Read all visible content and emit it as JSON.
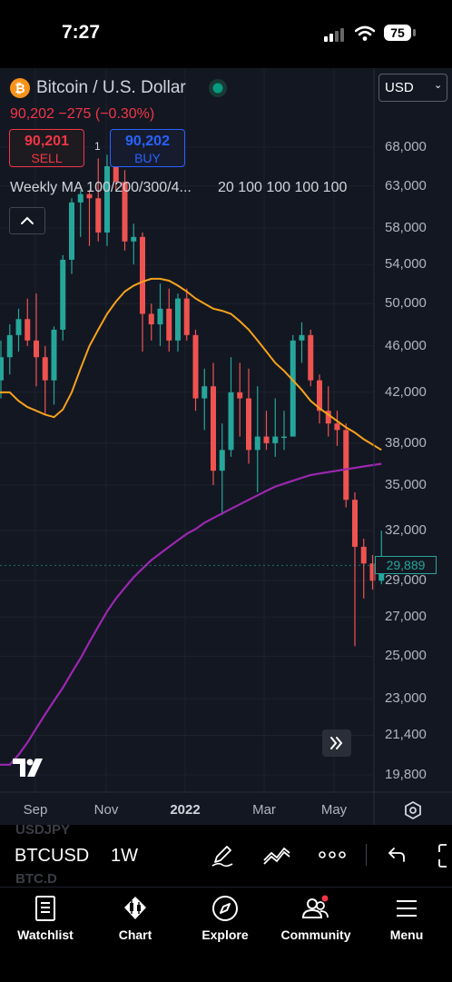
{
  "status_bar": {
    "time": "7:27",
    "battery": "75"
  },
  "header": {
    "title": "Bitcoin / U.S. Dollar",
    "quote": "90,202  −275 (−0.30%)",
    "quote_color": "#f23645",
    "sell_price": "90,201",
    "sell_label": "SELL",
    "spread": "1",
    "buy_price": "90,202",
    "buy_label": "BUY",
    "indicator_label": "Weekly MA 100/200/300/4...",
    "indicator_values": "20 100 100 100 100",
    "currency": "USD",
    "market_status_color": "#089981"
  },
  "chart_data": {
    "type": "candlestick",
    "y_ticks": [
      "68,000",
      "63,000",
      "58,000",
      "54,000",
      "50,000",
      "46,000",
      "42,000",
      "38,000",
      "35,000",
      "32,000",
      "29,000",
      "27,000",
      "25,000",
      "23,000",
      "21,400",
      "19,800"
    ],
    "x_ticks": [
      "Sep",
      "Nov",
      "2022",
      "Mar",
      "May"
    ],
    "last_price": "29,889",
    "up_color": "#26a69a",
    "down_color": "#ef5350",
    "candles": [
      {
        "o": 43000,
        "h": 46500,
        "l": 41500,
        "c": 45000
      },
      {
        "o": 45000,
        "h": 48000,
        "l": 43500,
        "c": 47000
      },
      {
        "o": 47000,
        "h": 49500,
        "l": 45500,
        "c": 48500
      },
      {
        "o": 48500,
        "h": 50500,
        "l": 46000,
        "c": 46500
      },
      {
        "o": 46500,
        "h": 51000,
        "l": 42500,
        "c": 45000
      },
      {
        "o": 45000,
        "h": 46000,
        "l": 40200,
        "c": 43000
      },
      {
        "o": 43000,
        "h": 47800,
        "l": 41000,
        "c": 47500
      },
      {
        "o": 47500,
        "h": 55000,
        "l": 46500,
        "c": 54500
      },
      {
        "o": 54500,
        "h": 61500,
        "l": 53000,
        "c": 61000
      },
      {
        "o": 61000,
        "h": 62500,
        "l": 57000,
        "c": 62000
      },
      {
        "o": 62000,
        "h": 62500,
        "l": 56000,
        "c": 61500
      },
      {
        "o": 61500,
        "h": 66500,
        "l": 56500,
        "c": 57500
      },
      {
        "o": 57500,
        "h": 67000,
        "l": 56000,
        "c": 65500
      },
      {
        "o": 65500,
        "h": 69000,
        "l": 62500,
        "c": 63500
      },
      {
        "o": 63500,
        "h": 65000,
        "l": 55500,
        "c": 56500
      },
      {
        "o": 56500,
        "h": 58500,
        "l": 54000,
        "c": 57000
      },
      {
        "o": 57000,
        "h": 57500,
        "l": 45500,
        "c": 49000
      },
      {
        "o": 49000,
        "h": 50000,
        "l": 46500,
        "c": 48000
      },
      {
        "o": 48000,
        "h": 52000,
        "l": 46000,
        "c": 49500
      },
      {
        "o": 49500,
        "h": 51500,
        "l": 45500,
        "c": 46500
      },
      {
        "o": 46500,
        "h": 51000,
        "l": 45500,
        "c": 50500
      },
      {
        "o": 50500,
        "h": 51500,
        "l": 46500,
        "c": 47000
      },
      {
        "o": 47000,
        "h": 47500,
        "l": 40500,
        "c": 41500
      },
      {
        "o": 41500,
        "h": 44000,
        "l": 39000,
        "c": 42500
      },
      {
        "o": 42500,
        "h": 44500,
        "l": 35000,
        "c": 36000
      },
      {
        "o": 36000,
        "h": 39500,
        "l": 33000,
        "c": 37500
      },
      {
        "o": 37500,
        "h": 45000,
        "l": 37000,
        "c": 42000
      },
      {
        "o": 42000,
        "h": 44500,
        "l": 38500,
        "c": 41500
      },
      {
        "o": 41500,
        "h": 44000,
        "l": 36500,
        "c": 37500
      },
      {
        "o": 37500,
        "h": 42500,
        "l": 34500,
        "c": 38500
      },
      {
        "o": 38500,
        "h": 40500,
        "l": 37500,
        "c": 38000
      },
      {
        "o": 38000,
        "h": 41500,
        "l": 37000,
        "c": 38500
      },
      {
        "o": 38500,
        "h": 40500,
        "l": 37500,
        "c": 38500
      },
      {
        "o": 38500,
        "h": 47000,
        "l": 38500,
        "c": 46500
      },
      {
        "o": 46500,
        "h": 48200,
        "l": 44500,
        "c": 47000
      },
      {
        "o": 47000,
        "h": 47500,
        "l": 42500,
        "c": 43000
      },
      {
        "o": 43000,
        "h": 43500,
        "l": 39500,
        "c": 40500
      },
      {
        "o": 40500,
        "h": 42500,
        "l": 38500,
        "c": 39500
      },
      {
        "o": 39500,
        "h": 40500,
        "l": 37800,
        "c": 39000
      },
      {
        "o": 39000,
        "h": 39500,
        "l": 33500,
        "c": 34000
      },
      {
        "o": 34000,
        "h": 34500,
        "l": 25500,
        "c": 31000
      },
      {
        "o": 31000,
        "h": 31500,
        "l": 28000,
        "c": 30000
      },
      {
        "o": 30000,
        "h": 30500,
        "l": 28500,
        "c": 29000
      },
      {
        "o": 29000,
        "h": 32000,
        "l": 28800,
        "c": 29889
      }
    ],
    "ma_orange": [
      42000,
      41300,
      40800,
      40500,
      40200,
      40000,
      40600,
      42000,
      44000,
      46000,
      47500,
      49000,
      50200,
      51200,
      51800,
      52200,
      52500,
      52500,
      52300,
      51800,
      51200,
      50500,
      50000,
      49500,
      49300,
      49000,
      48300,
      47500,
      46500,
      45500,
      44500,
      43800,
      43000,
      42200,
      41300,
      40700,
      40200,
      39700,
      39200,
      38800,
      38300,
      37900,
      37500
    ],
    "ma_purple": [
      20200,
      20600,
      21100,
      21700,
      22300,
      22900,
      23500,
      24200,
      24900,
      25700,
      26500,
      27300,
      28000,
      28600,
      29200,
      29700,
      30200,
      30600,
      31000,
      31400,
      31800,
      32100,
      32500,
      32800,
      33100,
      33400,
      33700,
      34000,
      34300,
      34600,
      34900,
      35100,
      35300,
      35500,
      35700,
      35800,
      35900,
      36000,
      36100,
      36200,
      36300,
      36400,
      36500
    ]
  },
  "toolbar": {
    "symbol": "BTCUSD",
    "interval": "1W",
    "ghost_symbol_top": "USDJPY",
    "ghost_symbol_bottom": "BTC.D"
  },
  "tabs": [
    {
      "label": "Watchlist",
      "icon": "watchlist-icon"
    },
    {
      "label": "Chart",
      "icon": "chart-icon"
    },
    {
      "label": "Explore",
      "icon": "compass-icon"
    },
    {
      "label": "Community",
      "icon": "community-icon"
    },
    {
      "label": "Menu",
      "icon": "menu-icon"
    }
  ]
}
